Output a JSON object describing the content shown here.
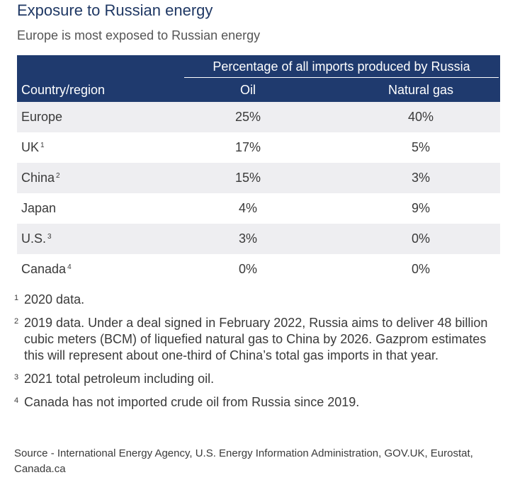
{
  "title": "Exposure to Russian energy",
  "subtitle": "Europe is most exposed to Russian energy",
  "table": {
    "group_header": "Percentage of all imports produced by Russia",
    "col_country": "Country/region",
    "col_oil": "Oil",
    "col_gas": "Natural gas",
    "rows": [
      {
        "country": "Europe",
        "note": "",
        "oil": "25%",
        "gas": "40%"
      },
      {
        "country": "UK",
        "note": "1",
        "oil": "17%",
        "gas": "5%"
      },
      {
        "country": "China",
        "note": "2",
        "oil": "15%",
        "gas": "3%"
      },
      {
        "country": "Japan",
        "note": "",
        "oil": "4%",
        "gas": "9%"
      },
      {
        "country": "U.S.",
        "note": "3",
        "oil": "3%",
        "gas": "0%"
      },
      {
        "country": "Canada",
        "note": "4",
        "oil": "0%",
        "gas": "0%"
      }
    ]
  },
  "footnotes": [
    {
      "mark": "1",
      "text": "2020 data."
    },
    {
      "mark": "2",
      "text": "2019 data. Under a deal signed in February 2022, Russia aims to deliver 48 billion cubic meters (BCM) of liquefied natural gas to China by 2026. Gazprom estimates this will represent about one-third of China’s total gas imports in that year."
    },
    {
      "mark": "3",
      "text": "2021 total petroleum including oil."
    },
    {
      "mark": "4",
      "text": "Canada has not imported crude oil from Russia since 2019."
    }
  ],
  "source": "Source - International Energy Agency, U.S. Energy Information Administration, GOV.UK, Eurostat, Canada.ca",
  "colors": {
    "header_bg": "#1f3a6e",
    "title": "#1f3864",
    "alt_row": "#eeeef1"
  },
  "chart_data": {
    "type": "table",
    "title": "Exposure to Russian energy",
    "subtitle": "Europe is most exposed to Russian energy",
    "columns": [
      "Country/region",
      "Oil",
      "Natural gas"
    ],
    "categories": [
      "Europe",
      "UK",
      "China",
      "Japan",
      "U.S.",
      "Canada"
    ],
    "series": [
      {
        "name": "Oil",
        "values": [
          25,
          17,
          15,
          4,
          3,
          0
        ]
      },
      {
        "name": "Natural gas",
        "values": [
          40,
          5,
          3,
          9,
          0,
          0
        ]
      }
    ]
  }
}
